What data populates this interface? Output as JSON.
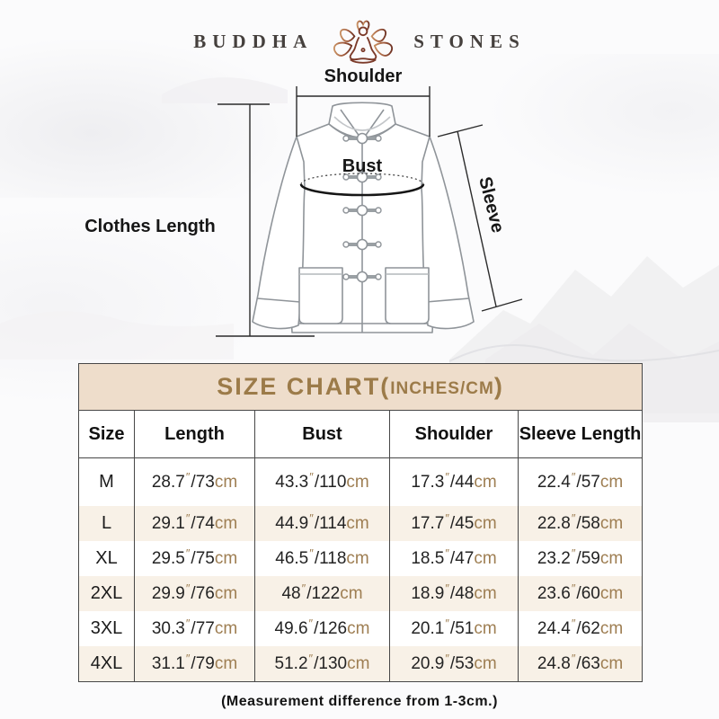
{
  "brand": {
    "left": "BUDDHA",
    "right": "STONES",
    "lotus_icon": "lotus-meditation-icon"
  },
  "diagram": {
    "labels": {
      "shoulder": "Shoulder",
      "bust": "Bust",
      "clothes_length": "Clothes Length",
      "sleeve": "Sleeve"
    }
  },
  "size_chart": {
    "title_main": "SIZE CHART(",
    "title_sub": "INCHES/CM",
    "title_close": ")",
    "columns": [
      "Size",
      "Length",
      "Bust",
      "Shoulder",
      "Sleeve Length"
    ],
    "unit_inch_mark": "″",
    "separator": "/",
    "unit_cm": "cm",
    "rows": [
      {
        "size": "M",
        "length": [
          "28.7",
          "73"
        ],
        "bust": [
          "43.3",
          "110"
        ],
        "shoulder": [
          "17.3",
          "44"
        ],
        "sleeve": [
          "22.4",
          "57"
        ]
      },
      {
        "size": "L",
        "length": [
          "29.1",
          "74"
        ],
        "bust": [
          "44.9",
          "114"
        ],
        "shoulder": [
          "17.7",
          "45"
        ],
        "sleeve": [
          "22.8",
          "58"
        ]
      },
      {
        "size": "XL",
        "length": [
          "29.5",
          "75"
        ],
        "bust": [
          "46.5",
          "118"
        ],
        "shoulder": [
          "18.5",
          "47"
        ],
        "sleeve": [
          "23.2",
          "59"
        ]
      },
      {
        "size": "2XL",
        "length": [
          "29.9",
          "76"
        ],
        "bust": [
          "48",
          "122"
        ],
        "shoulder": [
          "18.9",
          "48"
        ],
        "sleeve": [
          "23.6",
          "60"
        ]
      },
      {
        "size": "3XL",
        "length": [
          "30.3",
          "77"
        ],
        "bust": [
          "49.6",
          "126"
        ],
        "shoulder": [
          "20.1",
          "51"
        ],
        "sleeve": [
          "24.4",
          "62"
        ]
      },
      {
        "size": "4XL",
        "length": [
          "31.1",
          "79"
        ],
        "bust": [
          "51.2",
          "130"
        ],
        "shoulder": [
          "20.9",
          "53"
        ],
        "sleeve": [
          "24.8",
          "63"
        ]
      }
    ]
  },
  "footer": {
    "note": "(Measurement difference from 1-3cm.)"
  },
  "colors": {
    "title_bar_bg": "#eeddcb",
    "title_text": "#9c7b49",
    "alt_row_bg": "#f8f1e7",
    "unit_text": "#9e7e52",
    "logo_figure": "#7c3b2a",
    "table_border": "#474747"
  }
}
